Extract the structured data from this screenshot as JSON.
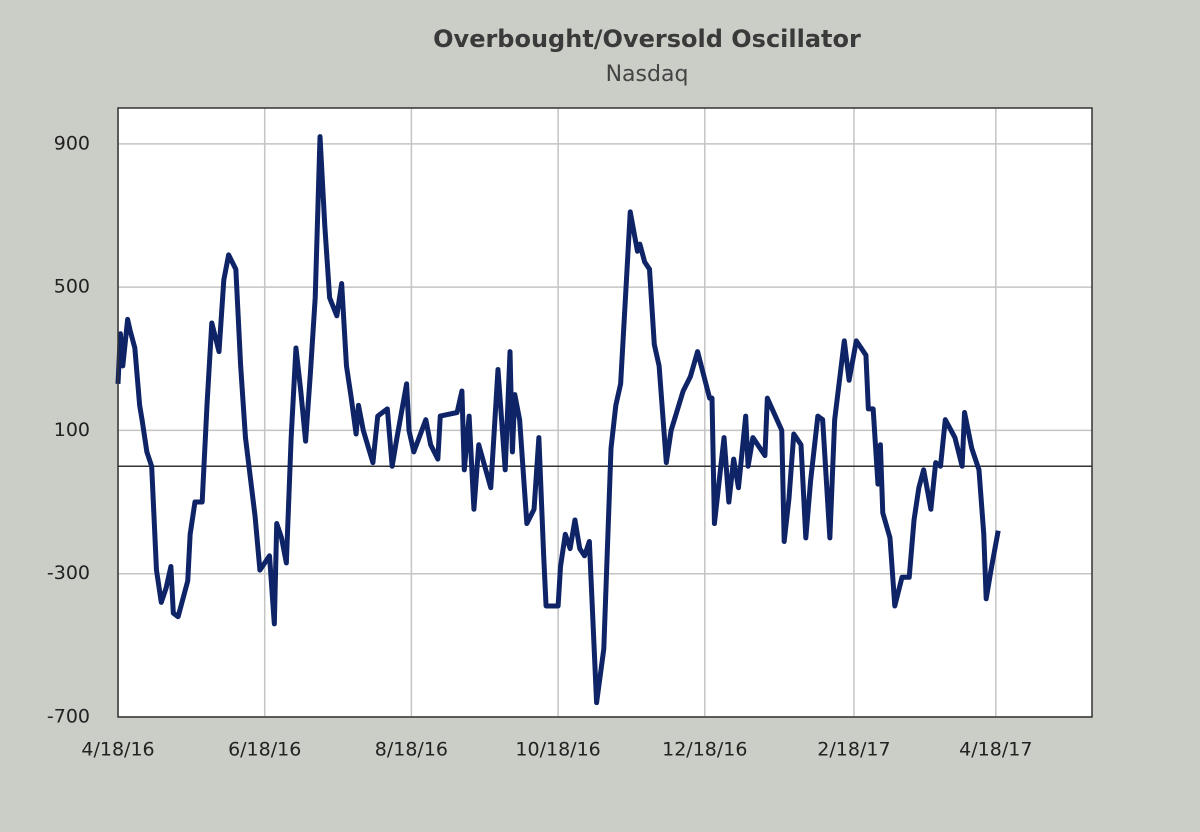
{
  "chart_data": {
    "type": "line",
    "title": "Overbought/Oversold  Oscillator",
    "subtitle": "Nasdaq",
    "x": [
      "2016-04-18",
      "2016-04-19",
      "2016-04-20",
      "2016-04-22",
      "2016-04-23",
      "2016-04-25",
      "2016-04-27",
      "2016-04-28",
      "2016-04-30",
      "2016-05-02",
      "2016-05-04",
      "2016-05-06",
      "2016-05-08",
      "2016-05-10",
      "2016-05-11",
      "2016-05-13",
      "2016-05-15",
      "2016-05-17",
      "2016-05-18",
      "2016-05-20",
      "2016-05-23",
      "2016-05-25",
      "2016-05-27",
      "2016-05-30",
      "2016-06-01",
      "2016-06-03",
      "2016-06-06",
      "2016-06-08",
      "2016-06-10",
      "2016-06-14",
      "2016-06-16",
      "2016-06-18",
      "2016-06-20",
      "2016-06-22",
      "2016-06-23",
      "2016-06-25",
      "2016-06-27",
      "2016-06-29",
      "2016-07-01",
      "2016-07-03",
      "2016-07-05",
      "2016-07-07",
      "2016-07-09",
      "2016-07-11",
      "2016-07-13",
      "2016-07-15",
      "2016-07-18",
      "2016-07-20",
      "2016-07-22",
      "2016-07-24",
      "2016-07-26",
      "2016-07-27",
      "2016-07-29",
      "2016-08-02",
      "2016-08-04",
      "2016-08-08",
      "2016-08-10",
      "2016-08-12",
      "2016-08-16",
      "2016-08-17",
      "2016-08-19",
      "2016-08-24",
      "2016-08-26",
      "2016-08-29",
      "2016-08-30",
      "2016-09-06",
      "2016-09-08",
      "2016-09-09",
      "2016-09-11",
      "2016-09-13",
      "2016-09-15",
      "2016-09-20",
      "2016-09-23",
      "2016-09-26",
      "2016-09-28",
      "2016-09-29",
      "2016-09-30",
      "2016-10-02",
      "2016-10-05",
      "2016-10-08",
      "2016-10-10",
      "2016-10-12",
      "2016-10-13",
      "2016-10-18",
      "2016-10-19",
      "2016-10-21",
      "2016-10-23",
      "2016-10-25",
      "2016-10-27",
      "2016-10-29",
      "2016-10-31",
      "2016-11-03",
      "2016-11-06",
      "2016-11-09",
      "2016-11-11",
      "2016-11-13",
      "2016-11-15",
      "2016-11-17",
      "2016-11-20",
      "2016-11-21",
      "2016-11-23",
      "2016-11-25",
      "2016-11-27",
      "2016-11-29",
      "2016-12-02",
      "2016-12-04",
      "2016-12-09",
      "2016-12-12",
      "2016-12-15",
      "2016-12-20",
      "2016-12-21",
      "2016-12-22",
      "2016-12-26",
      "2016-12-28",
      "2016-12-30",
      "2017-01-01",
      "2017-01-04",
      "2017-01-05",
      "2017-01-07",
      "2017-01-12",
      "2017-01-13",
      "2017-01-19",
      "2017-01-20",
      "2017-01-22",
      "2017-01-24",
      "2017-01-27",
      "2017-01-29",
      "2017-01-31",
      "2017-02-03",
      "2017-02-05",
      "2017-02-08",
      "2017-02-10",
      "2017-02-14",
      "2017-02-16",
      "2017-02-19",
      "2017-02-23",
      "2017-02-24",
      "2017-02-26",
      "2017-02-28",
      "2017-03-01",
      "2017-03-02",
      "2017-03-05",
      "2017-03-07",
      "2017-03-10",
      "2017-03-13",
      "2017-03-15",
      "2017-03-17",
      "2017-03-19",
      "2017-03-22",
      "2017-03-24",
      "2017-03-26",
      "2017-03-28",
      "2017-04-01",
      "2017-04-04",
      "2017-04-05",
      "2017-04-08",
      "2017-04-11",
      "2017-04-13",
      "2017-04-14",
      "2017-04-16",
      "2017-04-19"
    ],
    "series": [
      {
        "name": "Nasdaq",
        "color": "#0f2466",
        "values": [
          230,
          370,
          280,
          410,
          380,
          330,
          170,
          130,
          40,
          0,
          -290,
          -380,
          -340,
          -280,
          -410,
          -420,
          -370,
          -320,
          -190,
          -100,
          -100,
          170,
          400,
          320,
          520,
          590,
          550,
          280,
          80,
          -140,
          -290,
          -270,
          -250,
          -440,
          -160,
          -200,
          -270,
          80,
          330,
          210,
          70,
          260,
          470,
          920,
          670,
          470,
          420,
          510,
          280,
          190,
          90,
          170,
          100,
          10,
          140,
          160,
          0,
          80,
          230,
          100,
          40,
          130,
          60,
          20,
          140,
          150,
          210,
          -10,
          140,
          -120,
          60,
          -60,
          270,
          -10,
          320,
          40,
          200,
          130,
          -160,
          -120,
          80,
          -250,
          -390,
          -390,
          -280,
          -190,
          -230,
          -150,
          -230,
          -250,
          -210,
          -660,
          -510,
          50,
          170,
          230,
          470,
          710,
          600,
          620,
          570,
          550,
          340,
          280,
          10,
          100,
          210,
          250,
          320,
          190,
          190,
          -160,
          80,
          -100,
          20,
          -60,
          140,
          0,
          80,
          30,
          190,
          100,
          -210,
          -90,
          90,
          60,
          -200,
          -40,
          140,
          130,
          -200,
          130,
          350,
          240,
          350,
          310,
          160,
          160,
          -50,
          60,
          -130,
          -200,
          -390,
          -310,
          -310,
          -150,
          -60,
          -10,
          -120,
          10,
          0,
          130,
          80,
          0,
          150,
          50,
          -10,
          -190,
          -370,
          -290,
          -180
        ]
      }
    ],
    "xlim": [
      "2016-04-18",
      "2017-05-28"
    ],
    "xticks": [
      {
        "value": "2016-04-18",
        "label": "4/18/16"
      },
      {
        "value": "2016-06-18",
        "label": "6/18/16"
      },
      {
        "value": "2016-08-18",
        "label": "8/18/16"
      },
      {
        "value": "2016-10-18",
        "label": "10/18/16"
      },
      {
        "value": "2016-12-18",
        "label": "12/18/16"
      },
      {
        "value": "2017-02-18",
        "label": "2/18/17"
      },
      {
        "value": "2017-04-18",
        "label": "4/18/17"
      }
    ],
    "ylim": [
      -700,
      1000
    ],
    "yticks": [
      -700,
      -300,
      100,
      500,
      900
    ],
    "hline": 0,
    "grid": true
  }
}
